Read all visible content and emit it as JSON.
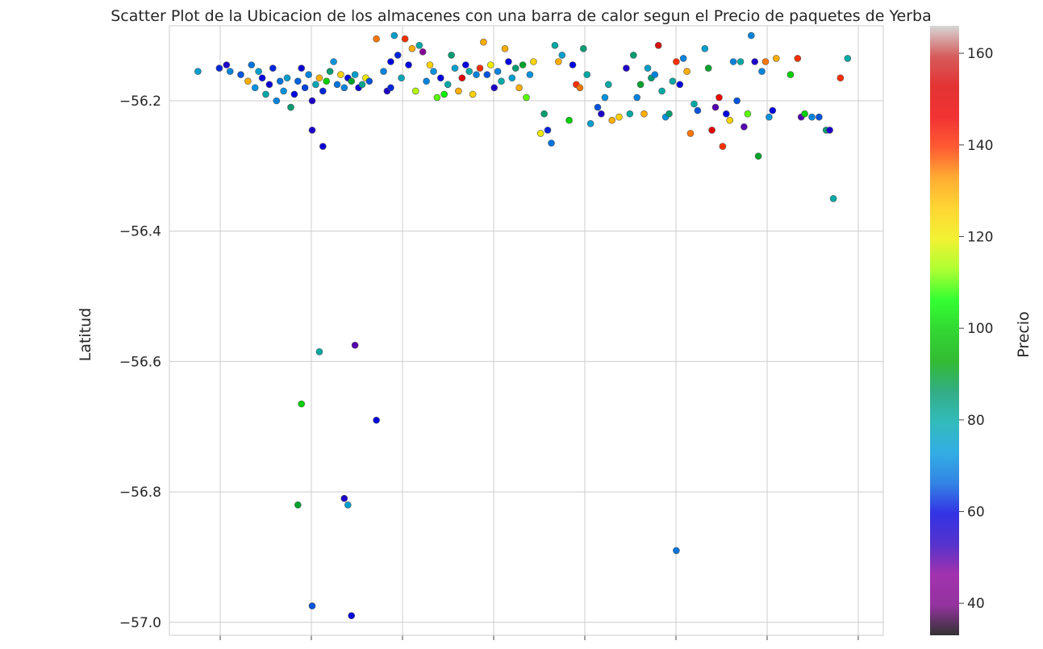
{
  "chart_data": {
    "type": "scatter",
    "title": "Scatter Plot de la Ubicacion de los almacenes con una barra de calor segun el Precio de paquetes de Yerba",
    "xlabel": "",
    "ylabel": "Latitud",
    "ylim": [
      -57.02,
      -56.085
    ],
    "xlim": [
      0,
      1
    ],
    "yticks": [
      -56.2,
      -56.4,
      -56.6,
      -56.8,
      -57.0
    ],
    "ytick_labels": [
      "−56.2",
      "−56.4",
      "−56.6",
      "−56.8",
      "−57.0"
    ],
    "grid": true,
    "colorbar": {
      "label": "Precio",
      "range": [
        33,
        166
      ],
      "ticks": [
        40,
        60,
        80,
        100,
        120,
        140,
        160
      ],
      "tick_labels": [
        "40",
        "60",
        "80",
        "100",
        "120",
        "140",
        "160"
      ],
      "colormap": "nipy_spectral"
    },
    "points": [
      [
        0.04,
        -56.155,
        75
      ],
      [
        0.07,
        -56.15,
        62
      ],
      [
        0.08,
        -56.145,
        55
      ],
      [
        0.085,
        -56.155,
        70
      ],
      [
        0.1,
        -56.16,
        65
      ],
      [
        0.11,
        -56.17,
        130
      ],
      [
        0.115,
        -56.145,
        68
      ],
      [
        0.12,
        -56.18,
        72
      ],
      [
        0.125,
        -56.155,
        75
      ],
      [
        0.13,
        -56.165,
        60
      ],
      [
        0.135,
        -56.19,
        80
      ],
      [
        0.14,
        -56.175,
        58
      ],
      [
        0.145,
        -56.15,
        62
      ],
      [
        0.15,
        -56.2,
        70
      ],
      [
        0.155,
        -56.17,
        68
      ],
      [
        0.16,
        -56.185,
        72
      ],
      [
        0.165,
        -56.165,
        75
      ],
      [
        0.17,
        -56.21,
        85
      ],
      [
        0.175,
        -56.19,
        60
      ],
      [
        0.18,
        -56.17,
        66
      ],
      [
        0.185,
        -56.15,
        58
      ],
      [
        0.19,
        -56.18,
        64
      ],
      [
        0.195,
        -56.16,
        70
      ],
      [
        0.2,
        -56.2,
        55
      ],
      [
        0.205,
        -56.175,
        78
      ],
      [
        0.21,
        -56.165,
        130
      ],
      [
        0.215,
        -56.185,
        62
      ],
      [
        0.22,
        -56.17,
        100
      ],
      [
        0.225,
        -56.155,
        85
      ],
      [
        0.23,
        -56.14,
        72
      ],
      [
        0.235,
        -56.175,
        68
      ],
      [
        0.24,
        -56.16,
        125
      ],
      [
        0.245,
        -56.18,
        70
      ],
      [
        0.25,
        -56.165,
        60
      ],
      [
        0.255,
        -56.17,
        90
      ],
      [
        0.26,
        -56.16,
        75
      ],
      [
        0.265,
        -56.18,
        58
      ],
      [
        0.27,
        -56.175,
        82
      ],
      [
        0.275,
        -56.165,
        120
      ],
      [
        0.28,
        -56.17,
        65
      ],
      [
        0.3,
        -56.155,
        70
      ],
      [
        0.305,
        -56.185,
        55
      ],
      [
        0.31,
        -56.14,
        60
      ],
      [
        0.315,
        -56.1,
        75
      ],
      [
        0.32,
        -56.13,
        62
      ],
      [
        0.325,
        -56.165,
        78
      ],
      [
        0.33,
        -56.105,
        140
      ],
      [
        0.335,
        -56.145,
        60
      ],
      [
        0.34,
        -56.12,
        130
      ],
      [
        0.345,
        -56.185,
        115
      ],
      [
        0.35,
        -56.115,
        80
      ],
      [
        0.355,
        -56.125,
        45
      ],
      [
        0.36,
        -56.17,
        70
      ],
      [
        0.365,
        -56.145,
        125
      ],
      [
        0.37,
        -56.155,
        72
      ],
      [
        0.375,
        -56.195,
        110
      ],
      [
        0.38,
        -56.165,
        60
      ],
      [
        0.385,
        -56.19,
        105
      ],
      [
        0.39,
        -56.175,
        80
      ],
      [
        0.395,
        -56.13,
        85
      ],
      [
        0.4,
        -56.15,
        75
      ],
      [
        0.405,
        -56.185,
        130
      ],
      [
        0.41,
        -56.165,
        150
      ],
      [
        0.415,
        -56.145,
        60
      ],
      [
        0.42,
        -56.155,
        80
      ],
      [
        0.425,
        -56.19,
        125
      ],
      [
        0.43,
        -56.16,
        70
      ],
      [
        0.435,
        -56.15,
        140
      ],
      [
        0.44,
        -56.11,
        130
      ],
      [
        0.445,
        -56.16,
        65
      ],
      [
        0.45,
        -56.145,
        120
      ],
      [
        0.455,
        -56.18,
        55
      ],
      [
        0.46,
        -56.155,
        70
      ],
      [
        0.465,
        -56.17,
        80
      ],
      [
        0.47,
        -56.12,
        130
      ],
      [
        0.475,
        -56.14,
        60
      ],
      [
        0.48,
        -56.165,
        75
      ],
      [
        0.485,
        -56.15,
        85
      ],
      [
        0.49,
        -56.18,
        130
      ],
      [
        0.495,
        -56.145,
        90
      ],
      [
        0.5,
        -56.195,
        110
      ],
      [
        0.505,
        -56.16,
        72
      ],
      [
        0.51,
        -56.14,
        125
      ],
      [
        0.52,
        -56.25,
        120
      ],
      [
        0.525,
        -56.22,
        85
      ],
      [
        0.53,
        -56.245,
        62
      ],
      [
        0.535,
        -56.265,
        68
      ],
      [
        0.54,
        -56.115,
        80
      ],
      [
        0.545,
        -56.14,
        130
      ],
      [
        0.55,
        -56.13,
        75
      ],
      [
        0.56,
        -56.23,
        100
      ],
      [
        0.565,
        -56.145,
        60
      ],
      [
        0.57,
        -56.175,
        140
      ],
      [
        0.575,
        -56.18,
        135
      ],
      [
        0.58,
        -56.12,
        85
      ],
      [
        0.585,
        -56.16,
        80
      ],
      [
        0.59,
        -56.235,
        75
      ],
      [
        0.6,
        -56.21,
        65
      ],
      [
        0.605,
        -56.22,
        55
      ],
      [
        0.61,
        -56.195,
        72
      ],
      [
        0.615,
        -56.175,
        80
      ],
      [
        0.62,
        -56.23,
        130
      ],
      [
        0.63,
        -56.225,
        125
      ],
      [
        0.64,
        -56.15,
        55
      ],
      [
        0.645,
        -56.22,
        80
      ],
      [
        0.65,
        -56.13,
        85
      ],
      [
        0.655,
        -56.195,
        70
      ],
      [
        0.66,
        -56.175,
        90
      ],
      [
        0.665,
        -56.22,
        130
      ],
      [
        0.67,
        -56.15,
        75
      ],
      [
        0.675,
        -56.165,
        85
      ],
      [
        0.68,
        -56.16,
        70
      ],
      [
        0.685,
        -56.115,
        155
      ],
      [
        0.69,
        -56.185,
        80
      ],
      [
        0.695,
        -56.225,
        72
      ],
      [
        0.7,
        -56.22,
        85
      ],
      [
        0.705,
        -56.17,
        80
      ],
      [
        0.71,
        -56.14,
        140
      ],
      [
        0.715,
        -56.175,
        60
      ],
      [
        0.72,
        -56.135,
        70
      ],
      [
        0.725,
        -56.155,
        130
      ],
      [
        0.73,
        -56.25,
        135
      ],
      [
        0.735,
        -56.205,
        80
      ],
      [
        0.74,
        -56.215,
        65
      ],
      [
        0.75,
        -56.12,
        75
      ],
      [
        0.755,
        -56.15,
        90
      ],
      [
        0.76,
        -56.245,
        150
      ],
      [
        0.765,
        -56.21,
        50
      ],
      [
        0.77,
        -56.195,
        145
      ],
      [
        0.775,
        -56.27,
        140
      ],
      [
        0.78,
        -56.22,
        60
      ],
      [
        0.785,
        -56.23,
        125
      ],
      [
        0.79,
        -56.14,
        70
      ],
      [
        0.795,
        -56.2,
        65
      ],
      [
        0.8,
        -56.14,
        80
      ],
      [
        0.805,
        -56.24,
        50
      ],
      [
        0.81,
        -56.22,
        110
      ],
      [
        0.815,
        -56.1,
        70
      ],
      [
        0.82,
        -56.14,
        55
      ],
      [
        0.825,
        -56.285,
        90
      ],
      [
        0.83,
        -56.155,
        70
      ],
      [
        0.835,
        -56.14,
        135
      ],
      [
        0.84,
        -56.225,
        72
      ],
      [
        0.845,
        -56.215,
        60
      ],
      [
        0.85,
        -56.135,
        130
      ],
      [
        0.87,
        -56.16,
        100
      ],
      [
        0.88,
        -56.135,
        140
      ],
      [
        0.885,
        -56.225,
        50
      ],
      [
        0.89,
        -56.22,
        100
      ],
      [
        0.9,
        -56.225,
        70
      ],
      [
        0.91,
        -56.225,
        65
      ],
      [
        0.92,
        -56.245,
        85
      ],
      [
        0.925,
        -56.245,
        55
      ],
      [
        0.93,
        -56.35,
        80
      ],
      [
        0.94,
        -56.165,
        140
      ],
      [
        0.95,
        -56.135,
        80
      ],
      [
        0.2,
        -56.245,
        55
      ],
      [
        0.215,
        -56.27,
        58
      ],
      [
        0.21,
        -56.585,
        80
      ],
      [
        0.26,
        -56.575,
        50
      ],
      [
        0.29,
        -56.69,
        60
      ],
      [
        0.185,
        -56.665,
        100
      ],
      [
        0.18,
        -56.82,
        90
      ],
      [
        0.245,
        -56.81,
        55
      ],
      [
        0.25,
        -56.82,
        75
      ],
      [
        0.2,
        -56.975,
        65
      ],
      [
        0.255,
        -56.99,
        60
      ],
      [
        0.29,
        -56.105,
        135
      ],
      [
        0.31,
        -56.18,
        62
      ],
      [
        0.71,
        -56.89,
        68
      ]
    ]
  }
}
